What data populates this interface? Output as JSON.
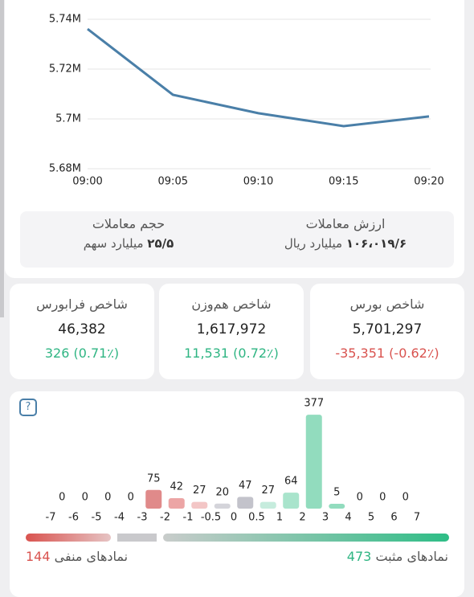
{
  "chart_data": [
    {
      "type": "line",
      "categories": [
        "09:00",
        "09:05",
        "09:10",
        "09:15",
        "09:20"
      ],
      "series": [
        {
          "color": "#4a7fa8",
          "values": [
            5736100,
            5709700,
            5702300,
            5697100,
            5701000
          ]
        }
      ],
      "ylim": [
        5680000,
        5740000
      ],
      "yticks": [
        {
          "value": 5680000,
          "label": "5.68M"
        },
        {
          "value": 5700000,
          "label": "5.7M"
        },
        {
          "value": 5720000,
          "label": "5.72M"
        },
        {
          "value": 5740000,
          "label": "5.74M"
        }
      ],
      "grid": true
    },
    {
      "type": "histogram",
      "bins": [
        -7,
        -6,
        -5,
        -4,
        -3,
        -2,
        -1,
        -0.5,
        0,
        0.5,
        1,
        2,
        3,
        4,
        5,
        6,
        7
      ],
      "values": [
        0,
        0,
        0,
        0,
        75,
        42,
        27,
        20,
        47,
        27,
        64,
        377,
        5,
        0,
        0,
        0
      ],
      "colors": [
        "#e08a8a",
        "#e08a8a",
        "#e08a8a",
        "#e08a8a",
        "#e08a8a",
        "#eca5a5",
        "#f3c6c6",
        "#d4d4da",
        "#c3c3cb",
        "#c6ecdd",
        "#a9e4cc",
        "#92dcbe",
        "#92dcbe",
        "#92dcbe",
        "#92dcbe",
        "#92dcbe"
      ]
    }
  ],
  "summary": {
    "value_title": "ارزش معاملات",
    "value": "۱۰۶،۰۱۹/۶",
    "value_unit": "میلیارد ریال",
    "volume_title": "حجم معاملات",
    "volume": "۲۵/۵",
    "volume_unit": "میلیارد سهم"
  },
  "indices": [
    {
      "title": "شاخص بورس",
      "value": "5,701,297",
      "change": "-35,351 (-0.62٪)",
      "color": "#d9534f"
    },
    {
      "title": "شاخص هم‌وزن",
      "value": "1,617,972",
      "change": "11,531 (0.72٪)",
      "color": "#2fb583"
    },
    {
      "title": "شاخص فرابورس",
      "value": "46,382",
      "change": "326 (0.71٪)",
      "color": "#2fb583"
    }
  ],
  "breadth": {
    "negative_label": "نمادهای منفی",
    "negative_count": 144,
    "positive_label": "نمادهای مثبت",
    "positive_count": 473
  }
}
